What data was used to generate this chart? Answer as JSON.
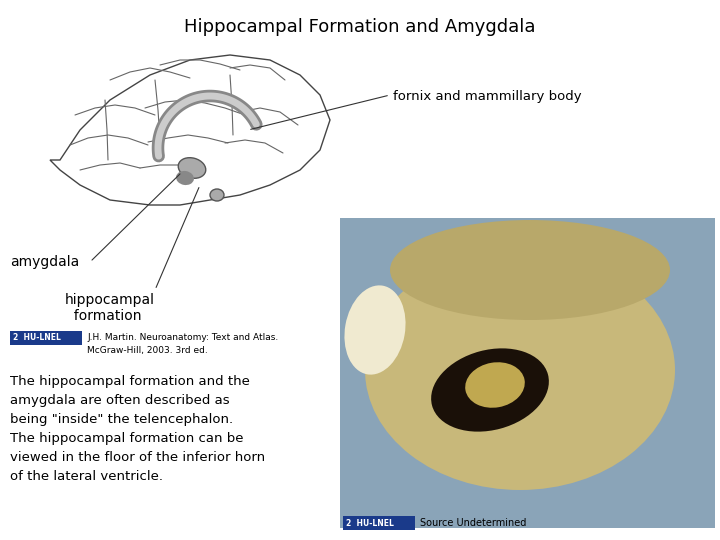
{
  "title": "Hippocampal Formation and Amygdala",
  "title_fontsize": 13,
  "title_fontweight": "normal",
  "bg_color": "#ffffff",
  "label_fornix": "fornix and mammillary body",
  "label_fornix_fontsize": 9.5,
  "label_amygdala": "amygdala",
  "label_amygdala_fontsize": 10,
  "label_hippo": "hippocampal\n  formation",
  "label_hippo_fontsize": 10,
  "citation_text": "J.H. Martin. Neuroanatomy: Text and Atlas.\nMcGraw-Hill, 2003. 3rd ed.",
  "citation_fontsize": 6.5,
  "citation_badge_color": "#1a3a8a",
  "citation_badge_text": "2  HU-LNEL",
  "body_text": "The hippocampal formation and the\namygdala are often described as\nbeing \"inside\" the telencephalon.\nThe hippocampal formation can be\nviewed in the floor of the inferior horn\nof the lateral ventricle.",
  "body_fontsize": 9.5,
  "source_text": "Source Undetermined",
  "source_fontsize": 7,
  "source_badge_color": "#1a3a8a",
  "source_badge_text": "2  HU-LNEL",
  "photo_bg_color": "#8aa4b8",
  "photo_brain_color": "#c8b87a",
  "photo_dark_color": "#1a1008",
  "photo_light_color": "#e8dfc0"
}
